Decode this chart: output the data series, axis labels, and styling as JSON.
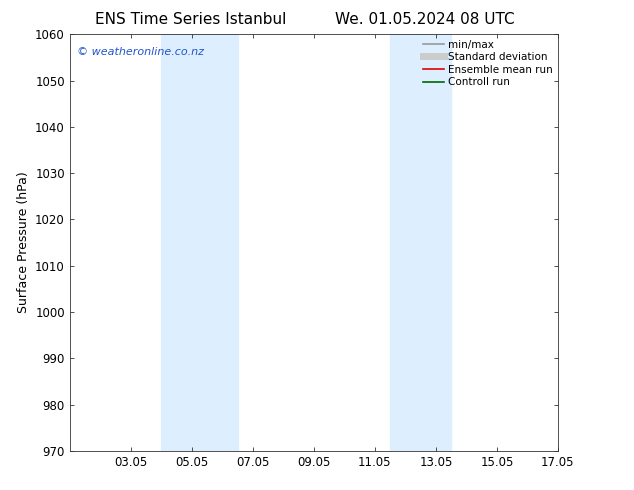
{
  "title_left": "ENS Time Series Istanbul",
  "title_right": "We. 01.05.2024 08 UTC",
  "ylabel": "Surface Pressure (hPa)",
  "ylim": [
    970,
    1060
  ],
  "yticks": [
    970,
    980,
    990,
    1000,
    1010,
    1020,
    1030,
    1040,
    1050,
    1060
  ],
  "xlim": [
    0,
    16
  ],
  "xtick_labels": [
    "03.05",
    "05.05",
    "07.05",
    "09.05",
    "11.05",
    "13.05",
    "15.05",
    "17.05"
  ],
  "xtick_positions": [
    2,
    4,
    6,
    8,
    10,
    12,
    14,
    16
  ],
  "shaded_bands": [
    {
      "x_start": 3.0,
      "x_end": 5.5,
      "color": "#ddeeff"
    },
    {
      "x_start": 10.5,
      "x_end": 12.5,
      "color": "#ddeeff"
    }
  ],
  "copyright_text": "© weatheronline.co.nz",
  "copyright_color": "#2255cc",
  "legend_items": [
    {
      "label": "min/max",
      "color": "#999999",
      "lw": 1.2,
      "style": "solid"
    },
    {
      "label": "Standard deviation",
      "color": "#cccccc",
      "lw": 5,
      "style": "solid"
    },
    {
      "label": "Ensemble mean run",
      "color": "#dd0000",
      "lw": 1.2,
      "style": "solid"
    },
    {
      "label": "Controll run",
      "color": "#006600",
      "lw": 1.2,
      "style": "solid"
    }
  ],
  "bg_color": "#ffffff",
  "spine_color": "#333333",
  "tick_label_fontsize": 8.5,
  "axis_label_fontsize": 9,
  "title_fontsize": 11
}
